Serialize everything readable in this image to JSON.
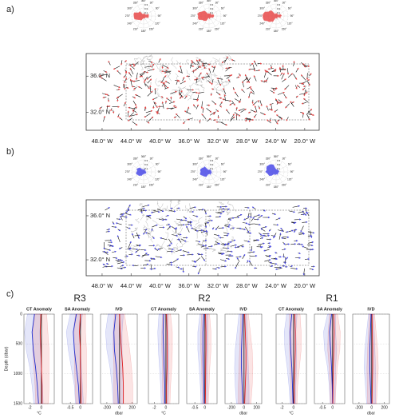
{
  "maps": [
    {
      "label": "a)",
      "color": "#e84848",
      "xlim": [
        -50.2,
        -18
      ],
      "ylim": [
        30,
        38.5
      ],
      "latticks": [
        {
          "value": 36,
          "label": "36.0° N"
        },
        {
          "value": 32,
          "label": "32.0° N"
        }
      ],
      "lonticks": [
        {
          "value": -48,
          "label": "48.0° W"
        },
        {
          "value": -44,
          "label": "44.0° W"
        },
        {
          "value": -40,
          "label": "40.0° W"
        },
        {
          "value": -36,
          "label": "36.0° W"
        },
        {
          "value": -32,
          "label": "32.0° W"
        },
        {
          "value": -28,
          "label": "28.0° W"
        },
        {
          "value": -24,
          "label": "24.0° W"
        },
        {
          "value": -20,
          "label": "20.0° W"
        }
      ]
    },
    {
      "label": "b)",
      "color": "#4a4ae8",
      "xlim": [
        -50.2,
        -18
      ],
      "ylim": [
        30.55,
        37.45
      ],
      "latticks": [
        {
          "value": 36,
          "label": "36.0° N"
        },
        {
          "value": 32,
          "label": "32.0° N"
        }
      ],
      "lonticks": [
        {
          "value": -48,
          "label": "48.0° W"
        },
        {
          "value": -44,
          "label": "44.0° W"
        },
        {
          "value": -40,
          "label": "40.0° W"
        },
        {
          "value": -36,
          "label": "36.0° W"
        },
        {
          "value": -32,
          "label": "32.0° W"
        },
        {
          "value": -28,
          "label": "28.0° W"
        },
        {
          "value": -24,
          "label": "24.0° W"
        },
        {
          "value": -20,
          "label": "20.0° W"
        }
      ]
    }
  ],
  "rose": {
    "angles": [
      "360°",
      "30°",
      "60°",
      "90°",
      "120°",
      "150°",
      "180°",
      "210°",
      "240°",
      "270°",
      "300°",
      "330°"
    ],
    "rings": [
      "0.1",
      "0.2",
      "0.3"
    ]
  },
  "profiles": {
    "label": "c)",
    "ylabel": "Depth (dbar)",
    "ylim": [
      0,
      1500
    ],
    "yticks": [
      0,
      500,
      1000,
      1500
    ],
    "depths": [
      0,
      300,
      600,
      900,
      1200,
      1500
    ],
    "variables": [
      {
        "title": "CT Anomaly",
        "unit": "°C",
        "xlim": [
          -3,
          2.2
        ],
        "xticks": [
          -2,
          0
        ]
      },
      {
        "title": "SA Anomaly",
        "unit": "",
        "xlim": [
          -0.9,
          0.6
        ],
        "xticks": [
          -0.5,
          0
        ]
      },
      {
        "title": "IVD",
        "unit": "dbar",
        "xlim": [
          -300,
          280
        ],
        "xticks": [
          -200,
          0,
          200
        ]
      }
    ],
    "groups": [
      {
        "name": "R3",
        "vars": [
          [
            {
              "color": "#1f2fd0",
              "values": [
                -1.2,
                -1.6,
                -1.4,
                -1.0,
                -0.7,
                -0.5
              ],
              "spread": [
                1.2,
                1.3,
                1.2,
                1.0,
                0.9,
                0.8
              ]
            },
            {
              "color": "#e02020",
              "values": [
                -0.1,
                -0.2,
                -0.1,
                0,
                0.1,
                0.1
              ],
              "spread": [
                1.0,
                1.3,
                1.4,
                1.3,
                1.2,
                1.1
              ]
            }
          ],
          [
            {
              "color": "#1f2fd0",
              "values": [
                -0.2,
                -0.35,
                -0.3,
                -0.2,
                -0.1,
                -0.05
              ],
              "spread": [
                0.3,
                0.35,
                0.3,
                0.25,
                0.2,
                0.2
              ]
            },
            {
              "color": "#e02020",
              "values": [
                0,
                -0.05,
                0,
                0,
                0.02,
                0.03
              ],
              "spread": [
                0.25,
                0.3,
                0.3,
                0.3,
                0.28,
                0.25
              ]
            }
          ],
          [
            {
              "color": "#1f2fd0",
              "values": [
                -60,
                -90,
                -80,
                -50,
                -30,
                -20
              ],
              "spread": [
                120,
                130,
                120,
                100,
                90,
                80
              ]
            },
            {
              "color": "#e02020",
              "values": [
                0,
                10,
                30,
                50,
                60,
                60
              ],
              "spread": [
                80,
                110,
                130,
                140,
                150,
                150
              ]
            }
          ]
        ]
      },
      {
        "name": "R2",
        "vars": [
          [
            {
              "color": "#1f2fd0",
              "values": [
                -0.4,
                -0.5,
                -0.4,
                -0.3,
                -0.2,
                -0.2
              ],
              "spread": [
                0.8,
                0.9,
                0.9,
                0.8,
                0.7,
                0.6
              ]
            },
            {
              "color": "#e02020",
              "values": [
                0.1,
                0.2,
                0.2,
                0.2,
                0.1,
                0.1
              ],
              "spread": [
                0.7,
                0.9,
                0.9,
                0.8,
                0.7,
                0.6
              ]
            }
          ],
          [
            {
              "color": "#1f2fd0",
              "values": [
                -0.05,
                -0.1,
                -0.1,
                -0.08,
                -0.05,
                -0.04
              ],
              "spread": [
                0.2,
                0.25,
                0.25,
                0.2,
                0.18,
                0.15
              ]
            },
            {
              "color": "#e02020",
              "values": [
                0.03,
                0.05,
                0.05,
                0.04,
                0.03,
                0.02
              ],
              "spread": [
                0.2,
                0.25,
                0.25,
                0.2,
                0.18,
                0.15
              ]
            }
          ],
          [
            {
              "color": "#1f2fd0",
              "values": [
                -20,
                -30,
                -40,
                -40,
                -30,
                -20
              ],
              "spread": [
                60,
                80,
                100,
                110,
                110,
                100
              ]
            },
            {
              "color": "#e02020",
              "values": [
                10,
                20,
                30,
                30,
                20,
                10
              ],
              "spread": [
                60,
                80,
                100,
                110,
                110,
                100
              ]
            }
          ]
        ]
      },
      {
        "name": "R1",
        "vars": [
          [
            {
              "color": "#1f2fd0",
              "values": [
                -0.3,
                -0.6,
                -0.5,
                -0.3,
                -0.2,
                -0.1
              ],
              "spread": [
                0.9,
                1.0,
                1.0,
                0.8,
                0.6,
                0.5
              ]
            },
            {
              "color": "#e02020",
              "values": [
                0.2,
                0.3,
                0.3,
                0.2,
                0.1,
                0.1
              ],
              "spread": [
                0.9,
                1.0,
                1.0,
                0.8,
                0.6,
                0.5
              ]
            }
          ],
          [
            {
              "color": "#1f2fd0",
              "values": [
                -0.05,
                -0.15,
                -0.1,
                -0.05,
                -0.02,
                0
              ],
              "spread": [
                0.2,
                0.3,
                0.3,
                0.2,
                0.15,
                0.12
              ]
            },
            {
              "color": "#e02020",
              "values": [
                0.05,
                0.08,
                0.06,
                0.03,
                0.02,
                0.01
              ],
              "spread": [
                0.2,
                0.3,
                0.3,
                0.2,
                0.15,
                0.12
              ]
            }
          ],
          [
            {
              "color": "#1f2fd0",
              "values": [
                -10,
                -20,
                -30,
                -30,
                -20,
                -10
              ],
              "spread": [
                40,
                60,
                80,
                90,
                80,
                70
              ]
            },
            {
              "color": "#e02020",
              "values": [
                5,
                10,
                15,
                15,
                10,
                5
              ],
              "spread": [
                40,
                60,
                80,
                90,
                80,
                70
              ]
            }
          ]
        ]
      }
    ]
  }
}
